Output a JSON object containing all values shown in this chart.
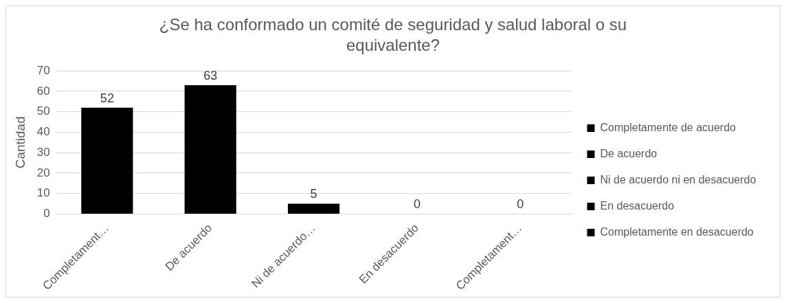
{
  "chart_data": {
    "type": "bar",
    "title": "¿Se ha conformado un comité de seguridad y salud laboral o su equivalente?",
    "ylabel": "Cantidad",
    "categories": [
      "Completament…",
      "De acuerdo",
      "Ni de acuerdo…",
      "En desacuerdo",
      "Completament…"
    ],
    "series": [
      {
        "name": "Completamente de acuerdo",
        "color": "#000000",
        "values": [
          52,
          null,
          null,
          null,
          null
        ]
      },
      {
        "name": "De acuerdo",
        "color": "#000000",
        "values": [
          null,
          63,
          null,
          null,
          null
        ]
      },
      {
        "name": "Ni de acuerdo ni en desacuerdo",
        "color": "#000000",
        "values": [
          null,
          null,
          5,
          null,
          null
        ]
      },
      {
        "name": "En desacuerdo",
        "color": "#000000",
        "values": [
          null,
          null,
          null,
          0,
          null
        ]
      },
      {
        "name": "Completamente en desacuerdo",
        "color": "#000000",
        "values": [
          null,
          null,
          null,
          null,
          0
        ]
      }
    ],
    "ylim": [
      0,
      70
    ],
    "yticks": [
      0,
      10,
      20,
      30,
      40,
      50,
      60,
      70
    ],
    "grid": "y",
    "legend": "right",
    "data_labels": true
  }
}
